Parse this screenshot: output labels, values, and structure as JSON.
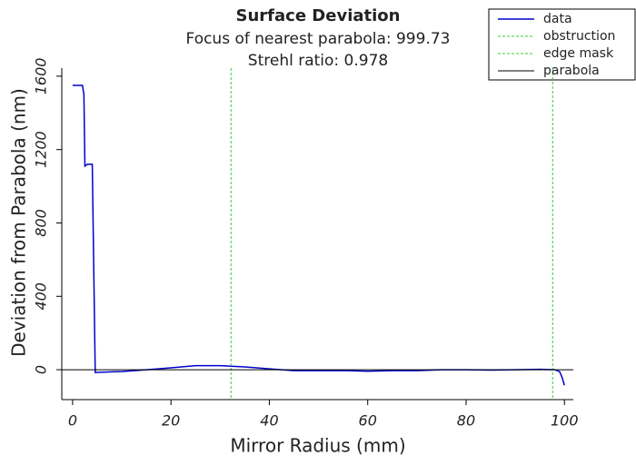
{
  "chart_data": {
    "type": "line",
    "title": "Surface Deviation",
    "subtitles": [
      "Focus of nearest parabola: 999.73",
      "Strehl ratio: 0.978"
    ],
    "x_label": "Mirror Radius (mm)",
    "y_label": "Deviation from Parabola (nm)",
    "xlim": [
      -2.2,
      101.8
    ],
    "ylim": [
      -163,
      1644
    ],
    "xticks": [
      0,
      20,
      40,
      60,
      80,
      100
    ],
    "yticks": [
      0,
      400,
      800,
      1200,
      1600
    ],
    "legend": "top-right",
    "series": [
      {
        "name": "data",
        "color": "#0000cc",
        "x": [
          0,
          2,
          2.3,
          2.5,
          3,
          4,
          4.6,
          10,
          15,
          20,
          25,
          30,
          35,
          40,
          45,
          50,
          55,
          60,
          65,
          70,
          75,
          80,
          85,
          90,
          95,
          98,
          99,
          99.5,
          100
        ],
        "values": [
          1550,
          1550,
          1500,
          1110,
          1120,
          1120,
          -15,
          -10,
          0,
          10,
          22,
          22,
          15,
          5,
          -5,
          -5,
          -5,
          -8,
          -5,
          -5,
          0,
          0,
          -2,
          0,
          2,
          0,
          -10,
          -40,
          -85
        ]
      },
      {
        "name": "obstruction",
        "color": "#33cc33",
        "style": "dashed",
        "xpos": 32.2
      },
      {
        "name": "edge mask",
        "color": "#33cc33",
        "style": "dashed",
        "xpos": 97.6
      },
      {
        "name": "parabola",
        "color": "#000000",
        "yvalue": 0
      }
    ]
  }
}
